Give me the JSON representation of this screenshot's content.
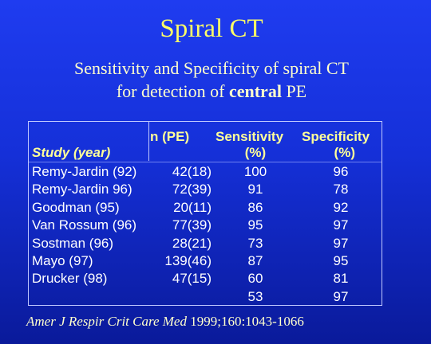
{
  "title": "Spiral CT",
  "subtitle": {
    "line1": "Sensitivity and Specificity of spiral CT",
    "line2_before": "for detection of",
    "line2_bold": "central",
    "line2_after": "PE"
  },
  "table": {
    "headers": {
      "study": "Study (year)",
      "n": "n (PE)",
      "sensitivity": [
        "Sensitivity",
        "(%)"
      ],
      "specificity": [
        "Specificity",
        "(%)"
      ]
    },
    "rows": [
      [
        "Remy-Jardin (92)",
        "42(18)",
        "100",
        "96"
      ],
      [
        "Remy-Jardin 96)",
        "72(39)",
        "91",
        "78"
      ],
      [
        "Goodman (95)",
        "20(11)",
        "86",
        "92"
      ],
      [
        "Van Rossum (96)",
        "77(39)",
        "95",
        "97"
      ],
      [
        "Sostman (96)",
        "28(21)",
        "73",
        "97"
      ],
      [
        "Mayo (97)",
        "139(46)",
        "87",
        "95"
      ],
      [
        "Drucker (98)",
        "47(15)",
        "60",
        "81"
      ],
      [
        null,
        null,
        "53",
        "97"
      ]
    ]
  },
  "citation": {
    "journal": "Amer J Respir Crit Care Med",
    "ref": "1999;160:1043-1066"
  }
}
